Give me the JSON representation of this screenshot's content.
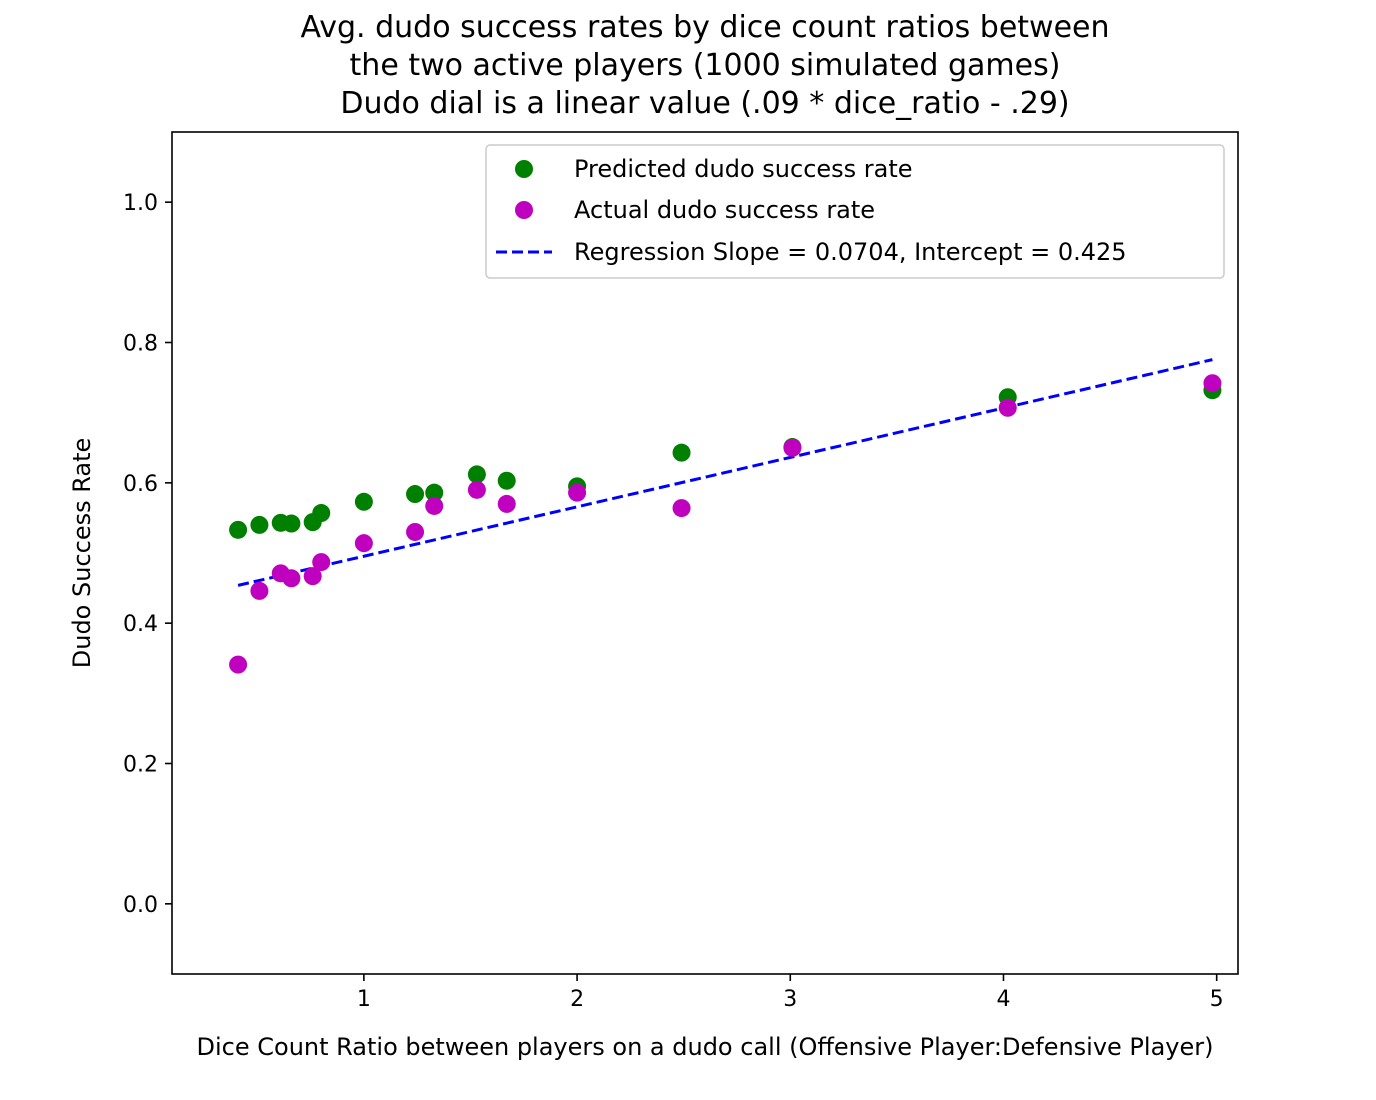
{
  "chart_data": {
    "type": "scatter",
    "title_lines": [
      "Avg. dudo success rates by dice count ratios between",
      "the two active players (1000 simulated games)",
      "Dudo dial is a linear value (.09 * dice_ratio - .29)"
    ],
    "xlabel": "Dice Count Ratio between players on a dudo call (Offensive Player:Defensive Player)",
    "ylabel": "Dudo Success Rate",
    "xlim": [
      0.1,
      5.1
    ],
    "ylim": [
      -0.1,
      1.1
    ],
    "xticks": [
      1,
      2,
      3,
      4,
      5
    ],
    "yticks": [
      0.0,
      0.2,
      0.4,
      0.6,
      0.8,
      1.0
    ],
    "ytick_labels": [
      "0.0",
      "0.2",
      "0.4",
      "0.6",
      "0.8",
      "1.0"
    ],
    "legend_position": "top-right",
    "series": [
      {
        "name": "Predicted dudo success rate",
        "kind": "scatter",
        "color": "#008000",
        "points": [
          {
            "x": 0.41,
            "y": 0.533
          },
          {
            "x": 0.51,
            "y": 0.54
          },
          {
            "x": 0.61,
            "y": 0.543
          },
          {
            "x": 0.66,
            "y": 0.542
          },
          {
            "x": 0.76,
            "y": 0.544
          },
          {
            "x": 0.8,
            "y": 0.557
          },
          {
            "x": 1.0,
            "y": 0.573
          },
          {
            "x": 1.24,
            "y": 0.584
          },
          {
            "x": 1.33,
            "y": 0.586
          },
          {
            "x": 1.53,
            "y": 0.612
          },
          {
            "x": 1.67,
            "y": 0.603
          },
          {
            "x": 2.0,
            "y": 0.595
          },
          {
            "x": 2.49,
            "y": 0.643
          },
          {
            "x": 3.01,
            "y": 0.651
          },
          {
            "x": 4.02,
            "y": 0.722
          },
          {
            "x": 4.98,
            "y": 0.732
          }
        ]
      },
      {
        "name": "Actual dudo success rate",
        "kind": "scatter",
        "color": "#bf00bf",
        "points": [
          {
            "x": 0.41,
            "y": 0.341
          },
          {
            "x": 0.51,
            "y": 0.446
          },
          {
            "x": 0.61,
            "y": 0.471
          },
          {
            "x": 0.66,
            "y": 0.464
          },
          {
            "x": 0.76,
            "y": 0.467
          },
          {
            "x": 0.8,
            "y": 0.487
          },
          {
            "x": 1.0,
            "y": 0.514
          },
          {
            "x": 1.24,
            "y": 0.53
          },
          {
            "x": 1.33,
            "y": 0.567
          },
          {
            "x": 1.53,
            "y": 0.59
          },
          {
            "x": 1.67,
            "y": 0.57
          },
          {
            "x": 2.0,
            "y": 0.586
          },
          {
            "x": 2.49,
            "y": 0.564
          },
          {
            "x": 3.01,
            "y": 0.65
          },
          {
            "x": 4.02,
            "y": 0.707
          },
          {
            "x": 4.98,
            "y": 0.742
          }
        ]
      },
      {
        "name": "Regression Slope = 0.0704, Intercept = 0.425",
        "kind": "line",
        "style": "dashed",
        "color": "#0000ff",
        "slope": 0.0704,
        "intercept": 0.425,
        "x_range": [
          0.41,
          4.98
        ]
      }
    ]
  }
}
